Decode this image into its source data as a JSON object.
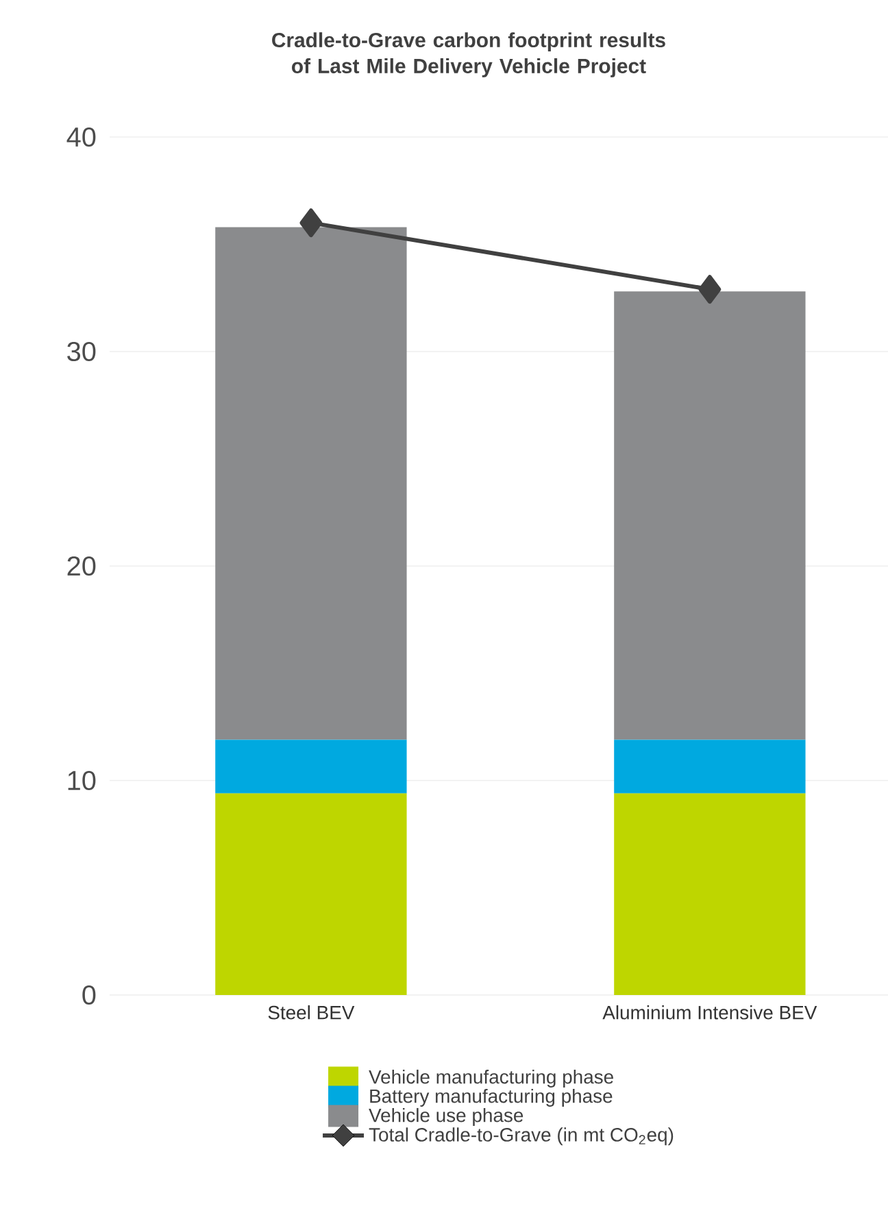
{
  "chart_data": {
    "type": "bar",
    "title": "Cradle-to-Grave carbon footprint results of Last Mile Delivery Vehicle Project",
    "categories": [
      "Steel BEV",
      "Aluminium Intensive BEV"
    ],
    "stacked": true,
    "ylim": [
      0,
      40
    ],
    "yticks": [
      0,
      10,
      20,
      30,
      40
    ],
    "grid": "y",
    "legend": "bottom",
    "series": [
      {
        "name": "Vehicle manufacturing phase",
        "color": "#bed600",
        "values": [
          9.4,
          9.4
        ]
      },
      {
        "name": "Battery manufacturing phase",
        "color": "#00a9e0",
        "values": [
          2.5,
          2.5
        ]
      },
      {
        "name": "Vehicle use phase",
        "color": "#8a8b8d",
        "values": [
          23.9,
          20.9
        ]
      },
      {
        "name": "Total Cradle-to-Grave (in mt CO$_{2}$eq)",
        "type": "line",
        "color": "#404040",
        "marker": "diamond",
        "values": [
          36,
          32.9
        ]
      }
    ]
  }
}
